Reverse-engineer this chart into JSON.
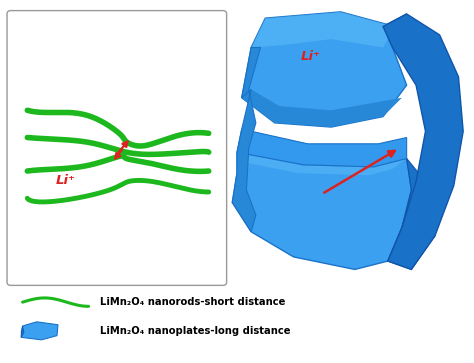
{
  "bg_color": "#ffffff",
  "green_color": "#1db81d",
  "blue_main": "#3399ee",
  "blue_dark": "#1a6bbf",
  "blue_mid": "#4faee8",
  "blue_light": "#5bbcf5",
  "red_color": "#dd2222",
  "li_label": "Li⁺",
  "legend_line1": "LiMn₂O₄ nanorods-short distance",
  "legend_line2": "LiMn₂O₄ nanoplates-long distance",
  "figsize": [
    4.74,
    3.63
  ],
  "dpi": 100
}
